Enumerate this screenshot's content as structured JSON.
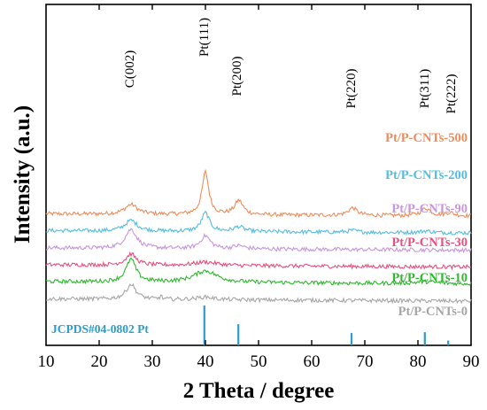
{
  "chart_data": {
    "type": "line",
    "xlabel": "2 Theta / degree",
    "ylabel": "Intensity (a.u.)",
    "xlim": [
      10,
      90
    ],
    "x_ticks": [
      "10",
      "20",
      "30",
      "40",
      "50",
      "60",
      "70",
      "80",
      "90"
    ],
    "y_ticks_shown": false,
    "grid": false,
    "peak_labels": [
      {
        "text": "C(002)",
        "x": 26
      },
      {
        "text": "Pt(111)",
        "x": 40
      },
      {
        "text": "Pt(200)",
        "x": 46.3
      },
      {
        "text": "Pt(220)",
        "x": 67.7
      },
      {
        "text": "Pt(311)",
        "x": 81.5
      },
      {
        "text": "Pt(222)",
        "x": 86
      }
    ],
    "series": [
      {
        "name": "Pt/P-CNTs-500",
        "color": "#f08c5a",
        "baseline": 9.6,
        "peaks": [
          [
            26,
            1.1,
            1.4
          ],
          [
            40,
            4.8,
            0.75
          ],
          [
            46.3,
            1.6,
            0.95
          ],
          [
            67.7,
            0.85,
            1.0
          ],
          [
            81.5,
            0.85,
            1.1
          ],
          [
            86,
            0.35,
            1.0
          ]
        ]
      },
      {
        "name": "Pt/P-CNTs-200",
        "color": "#55bde0",
        "baseline": 7.7,
        "peaks": [
          [
            26,
            1.2,
            1.4
          ],
          [
            40,
            2.1,
            0.9
          ],
          [
            46.3,
            0.55,
            1.1
          ],
          [
            67.7,
            0.2,
            1.2
          ],
          [
            81.5,
            0.2,
            1.2
          ]
        ]
      },
      {
        "name": "Pt/P-CNTs-90",
        "color": "#c796dc",
        "baseline": 5.75,
        "peaks": [
          [
            26,
            2.15,
            1.3
          ],
          [
            40,
            1.45,
            1.1
          ],
          [
            46.3,
            0.35,
            1.2
          ]
        ]
      },
      {
        "name": "Pt/P-CNTs-30",
        "color": "#e8507e",
        "baseline": 3.85,
        "peaks": [
          [
            26,
            1.25,
            1.2
          ],
          [
            40,
            0.4,
            2.6
          ]
        ]
      },
      {
        "name": "Pt/P-CNTs-10",
        "color": "#2eb82e",
        "baseline": 1.95,
        "peaks": [
          [
            26,
            2.55,
            1.1
          ],
          [
            40,
            1.3,
            2.6
          ],
          [
            81.5,
            0.2,
            2.5
          ]
        ]
      },
      {
        "name": "Pt/P-CNTs-0",
        "color": "#a6a6a6",
        "baseline": 0.0,
        "peaks": [
          [
            26,
            1.7,
            1.1
          ],
          [
            31.6,
            0.4,
            0.2
          ],
          [
            40,
            0.3,
            1.8
          ]
        ]
      }
    ],
    "reference": {
      "name": "JCPDS#04-0802 Pt",
      "color": "#2b9ccc",
      "lines": [
        [
          39.8,
          100
        ],
        [
          46.2,
          53
        ],
        [
          67.5,
          31
        ],
        [
          81.3,
          33
        ],
        [
          85.7,
          12
        ]
      ]
    }
  }
}
